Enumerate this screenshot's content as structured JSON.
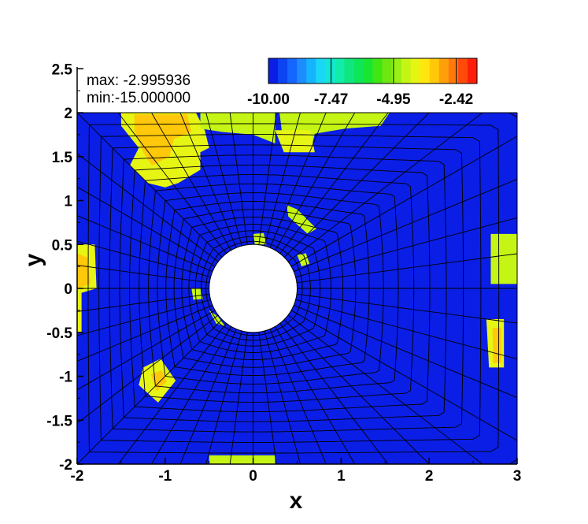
{
  "chart_data": {
    "type": "heatmap",
    "title": "",
    "xlabel": "x",
    "ylabel": "y",
    "xlim": [
      -2,
      3
    ],
    "ylim": [
      -2,
      2.5
    ],
    "x_ticks": [
      "-2",
      "-1",
      "0",
      "1",
      "2",
      "3"
    ],
    "y_ticks": [
      "-2",
      "-1.5",
      "-1",
      "-0.5",
      "0",
      "0.5",
      "1",
      "1.5",
      "2",
      "2.5"
    ],
    "stats": {
      "max_text": "max: -2.995936",
      "min_text": "min:-15.000000"
    },
    "colorbar": {
      "labels": [
        "-10.00",
        "-7.47",
        "-4.95",
        "-2.42"
      ],
      "range": [
        -10.0,
        -1.58
      ],
      "colors": [
        "#0a1ee6",
        "#0d44f2",
        "#1565ff",
        "#1c8cff",
        "#16b4ff",
        "#1ad8f5",
        "#14e6d2",
        "#12ecab",
        "#10e680",
        "#0ee65a",
        "#18e632",
        "#40e614",
        "#6ee610",
        "#96f014",
        "#c4f514",
        "#e6f514",
        "#ffe60e",
        "#ffc80a",
        "#ffa00a",
        "#ff7a0a",
        "#ff4a0a",
        "#ff1e0a"
      ]
    },
    "background_value": -15.0,
    "cylinder": {
      "center": [
        0,
        0
      ],
      "radius": 0.5
    },
    "regions": [
      {
        "name": "top-left-block",
        "polygon": [
          [
            -1.5,
            2.0
          ],
          [
            -0.65,
            2.0
          ],
          [
            -0.55,
            1.8
          ],
          [
            -0.5,
            1.6
          ],
          [
            -0.6,
            1.55
          ],
          [
            -0.6,
            1.35
          ],
          [
            -0.85,
            1.2
          ],
          [
            -1.0,
            1.15
          ],
          [
            -1.2,
            1.2
          ],
          [
            -1.4,
            1.4
          ],
          [
            -1.3,
            1.6
          ],
          [
            -1.5,
            1.85
          ]
        ],
        "value": -4.0,
        "core": {
          "polygon": [
            [
              -1.35,
              1.98
            ],
            [
              -0.75,
              1.98
            ],
            [
              -0.7,
              1.78
            ],
            [
              -0.9,
              1.7
            ],
            [
              -0.95,
              1.5
            ],
            [
              -1.15,
              1.4
            ],
            [
              -1.25,
              1.55
            ],
            [
              -1.35,
              1.8
            ]
          ],
          "value": -3.2
        }
      },
      {
        "name": "top-mid-strip",
        "polygon": [
          [
            -0.6,
            2.0
          ],
          [
            0.25,
            2.0
          ],
          [
            0.25,
            1.65
          ],
          [
            0.0,
            1.75
          ],
          [
            -0.35,
            1.78
          ],
          [
            -0.6,
            1.82
          ]
        ],
        "value": -4.4
      },
      {
        "name": "top-right-block",
        "polygon": [
          [
            0.3,
            2.0
          ],
          [
            1.55,
            2.0
          ],
          [
            1.45,
            1.85
          ],
          [
            1.05,
            1.82
          ],
          [
            0.7,
            1.76
          ],
          [
            0.65,
            1.55
          ],
          [
            0.35,
            1.6
          ]
        ],
        "value": -4.3
      },
      {
        "name": "small-top-block",
        "polygon": [
          [
            0.25,
            1.8
          ],
          [
            0.65,
            1.8
          ],
          [
            0.7,
            1.55
          ],
          [
            0.35,
            1.55
          ]
        ],
        "value": -4.1
      },
      {
        "name": "patch-ne-1",
        "polygon": [
          [
            0.38,
            0.95
          ],
          [
            0.5,
            0.9
          ],
          [
            0.72,
            0.68
          ],
          [
            0.62,
            0.62
          ],
          [
            0.4,
            0.82
          ]
        ],
        "value": -4.5
      },
      {
        "name": "patch-ne-2",
        "polygon": [
          [
            0.5,
            0.38
          ],
          [
            0.6,
            0.4
          ],
          [
            0.64,
            0.28
          ],
          [
            0.55,
            0.25
          ]
        ],
        "value": -4.5
      },
      {
        "name": "patch-n",
        "polygon": [
          [
            0.0,
            0.62
          ],
          [
            0.12,
            0.63
          ],
          [
            0.15,
            0.5
          ],
          [
            0.02,
            0.5
          ]
        ],
        "value": -4.5
      },
      {
        "name": "patch-w",
        "polygon": [
          [
            -0.7,
            0.0
          ],
          [
            -0.6,
            0.0
          ],
          [
            -0.57,
            -0.12
          ],
          [
            -0.68,
            -0.13
          ]
        ],
        "value": -4.5
      },
      {
        "name": "patch-sw",
        "polygon": [
          [
            -0.5,
            -0.25
          ],
          [
            -0.4,
            -0.32
          ],
          [
            -0.32,
            -0.43
          ],
          [
            -0.42,
            -0.4
          ]
        ],
        "value": -4.6
      },
      {
        "name": "patch-lower-left",
        "polygon": [
          [
            -1.25,
            -0.9
          ],
          [
            -1.05,
            -0.8
          ],
          [
            -0.88,
            -1.05
          ],
          [
            -1.08,
            -1.3
          ],
          [
            -1.3,
            -1.1
          ]
        ],
        "value": -4.1,
        "core": {
          "polygon": [
            [
              -1.16,
              -0.98
            ],
            [
              -1.04,
              -0.93
            ],
            [
              -0.98,
              -1.06
            ],
            [
              -1.1,
              -1.17
            ]
          ],
          "value": -3.3
        }
      },
      {
        "name": "left-edge-patch",
        "polygon": [
          [
            -2.0,
            0.5
          ],
          [
            -1.8,
            0.5
          ],
          [
            -1.78,
            0.0
          ],
          [
            -1.95,
            -0.05
          ],
          [
            -1.95,
            -0.5
          ],
          [
            -2.0,
            -0.5
          ]
        ],
        "value": -4.2,
        "core": {
          "polygon": [
            [
              -2.0,
              0.4
            ],
            [
              -1.88,
              0.35
            ],
            [
              -1.85,
              0.05
            ],
            [
              -2.0,
              0.0
            ]
          ],
          "value": -3.4
        }
      },
      {
        "name": "right-upper-patch",
        "polygon": [
          [
            2.7,
            0.62
          ],
          [
            3.0,
            0.62
          ],
          [
            3.0,
            0.05
          ],
          [
            2.7,
            0.05
          ]
        ],
        "value": -4.3
      },
      {
        "name": "right-lower-patch",
        "polygon": [
          [
            2.65,
            -0.35
          ],
          [
            2.85,
            -0.35
          ],
          [
            2.85,
            -0.9
          ],
          [
            2.68,
            -0.9
          ]
        ],
        "value": -4.2,
        "core": {
          "polygon": [
            [
              2.72,
              -0.45
            ],
            [
              2.82,
              -0.45
            ],
            [
              2.82,
              -0.85
            ],
            [
              2.73,
              -0.85
            ]
          ],
          "value": -3.3
        }
      },
      {
        "name": "bottom-patch",
        "polygon": [
          [
            -0.5,
            -1.9
          ],
          [
            0.25,
            -1.9
          ],
          [
            0.25,
            -2.0
          ],
          [
            -0.5,
            -2.0
          ]
        ],
        "value": -4.3
      }
    ]
  }
}
